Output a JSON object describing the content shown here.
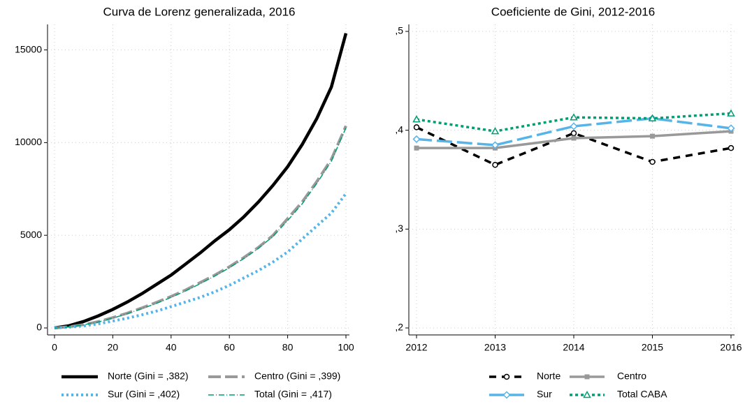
{
  "chart_data": [
    {
      "type": "line",
      "title": "Curva de Lorenz generalizada, 2016",
      "x": [
        0,
        5,
        10,
        15,
        20,
        25,
        30,
        35,
        40,
        45,
        50,
        55,
        60,
        65,
        70,
        75,
        80,
        85,
        90,
        95,
        100
      ],
      "xlim": [
        0,
        100
      ],
      "xticks": [
        0,
        20,
        40,
        60,
        80,
        100
      ],
      "ylim": [
        0,
        16000
      ],
      "yticks": [
        0,
        5000,
        10000,
        15000
      ],
      "grid": true,
      "series": [
        {
          "name": "Norte (Gini = ,382)",
          "color": "#000000",
          "values": [
            0,
            120,
            350,
            650,
            1000,
            1400,
            1850,
            2350,
            2850,
            3450,
            4050,
            4700,
            5300,
            6000,
            6800,
            7700,
            8700,
            9900,
            11300,
            13000,
            15900
          ]
        },
        {
          "name": "Centro (Gini = ,399)",
          "color": "#999999",
          "values": [
            0,
            60,
            180,
            340,
            560,
            800,
            1080,
            1380,
            1700,
            2050,
            2450,
            2850,
            3300,
            3800,
            4350,
            5000,
            5900,
            6800,
            7900,
            9100,
            10900
          ]
        },
        {
          "name": "Sur (Gini = ,402)",
          "color": "#56b4e9",
          "values": [
            0,
            40,
            110,
            220,
            370,
            530,
            710,
            910,
            1150,
            1400,
            1650,
            1950,
            2300,
            2700,
            3100,
            3560,
            4100,
            4800,
            5500,
            6200,
            7250
          ]
        },
        {
          "name": "Total (Gini = ,417)",
          "color": "#009e73",
          "values": [
            0,
            55,
            170,
            320,
            530,
            770,
            1040,
            1330,
            1650,
            2000,
            2390,
            2800,
            3250,
            3750,
            4300,
            4950,
            5800,
            6700,
            7800,
            9000,
            10800
          ]
        }
      ]
    },
    {
      "type": "line",
      "title": "Coeficiente de Gini, 2012-2016",
      "categories": [
        "2012",
        "2013",
        "2014",
        "2015",
        "2016"
      ],
      "ylim": [
        0.2,
        0.5
      ],
      "yticks": [
        {
          "value": 0.2,
          "label": ",2"
        },
        {
          "value": 0.3,
          "label": ",3"
        },
        {
          "value": 0.4,
          "label": ",4"
        },
        {
          "value": 0.5,
          "label": ",5"
        }
      ],
      "grid": true,
      "series": [
        {
          "name": "Norte",
          "color": "#000000",
          "values": [
            0.403,
            0.365,
            0.397,
            0.368,
            0.382
          ]
        },
        {
          "name": "Centro",
          "color": "#999999",
          "values": [
            0.382,
            0.382,
            0.392,
            0.394,
            0.399
          ]
        },
        {
          "name": "Sur",
          "color": "#56b4e9",
          "values": [
            0.391,
            0.385,
            0.404,
            0.412,
            0.402
          ]
        },
        {
          "name": "Total CABA",
          "color": "#009e73",
          "values": [
            0.411,
            0.399,
            0.413,
            0.412,
            0.417
          ]
        }
      ]
    }
  ]
}
